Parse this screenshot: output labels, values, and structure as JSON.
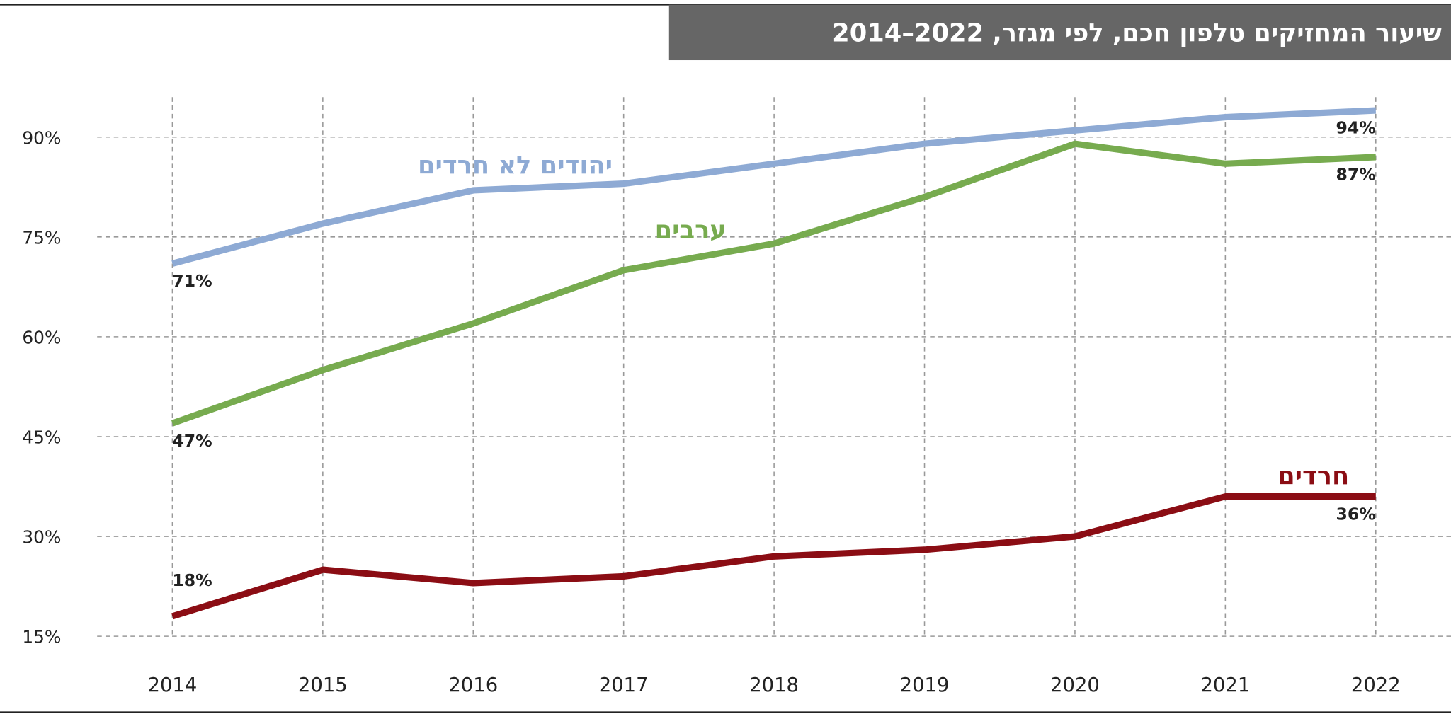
{
  "chart_data": {
    "type": "line",
    "title": "שיעור המחזיקים טלפון חכם, לפי מגזר, 2022–2014",
    "x": [
      2014,
      2015,
      2016,
      2017,
      2018,
      2019,
      2020,
      2021,
      2022
    ],
    "xlim": [
      2013.5,
      2022.5
    ],
    "xticks": [
      2014,
      2015,
      2016,
      2017,
      2018,
      2019,
      2020,
      2021,
      2022
    ],
    "ylim": [
      15,
      96
    ],
    "yticks": [
      {
        "value": 15,
        "label": "15%"
      },
      {
        "value": 30,
        "label": "30%"
      },
      {
        "value": 45,
        "label": "45%"
      },
      {
        "value": 60,
        "label": "60%"
      },
      {
        "value": 75,
        "label": "75%"
      },
      {
        "value": 90,
        "label": "90%"
      }
    ],
    "grid": true,
    "series": [
      {
        "name": "יהודים לא חרדים",
        "color": "#8eaad4",
        "values": [
          71,
          77,
          82,
          83,
          86,
          89,
          91,
          93,
          94
        ],
        "value_labels": [
          "71%",
          null,
          null,
          null,
          null,
          null,
          null,
          null,
          "94%"
        ]
      },
      {
        "name": "ערבים",
        "color": "#77ab4f",
        "values": [
          47,
          55,
          62,
          70,
          74,
          81,
          89,
          86,
          87
        ],
        "value_labels": [
          "47%",
          null,
          null,
          null,
          null,
          null,
          null,
          null,
          "87%"
        ]
      },
      {
        "name": "חרדים",
        "color": "#8b0d14",
        "values": [
          18,
          25,
          23,
          24,
          27,
          28,
          30,
          36,
          36
        ],
        "value_labels": [
          "18%",
          null,
          null,
          null,
          null,
          null,
          null,
          null,
          "36%"
        ]
      }
    ]
  }
}
